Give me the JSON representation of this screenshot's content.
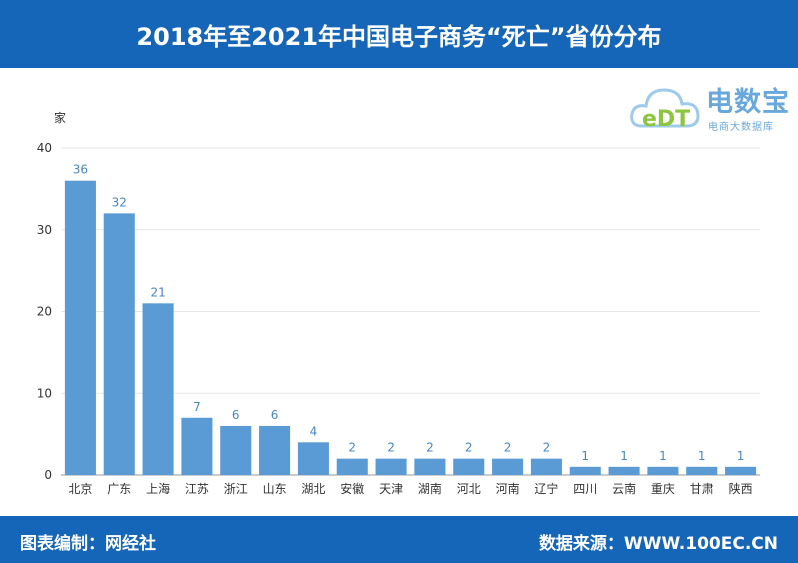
{
  "header": {
    "title": "2018年至2021年中国电子商务“死亡”省份分布"
  },
  "footer": {
    "editor": "图表编制：网经社",
    "source": "数据来源：WWW.100EC.CN"
  },
  "logo": {
    "name": "电数宝",
    "sub": "电商大数据库",
    "mark": "eDT"
  },
  "colors": {
    "bar": "#5b9bd5",
    "label": "#4a86c5",
    "header": "#1565b8"
  },
  "chart_data": {
    "type": "bar",
    "categories": [
      "北京",
      "广东",
      "上海",
      "江苏",
      "浙江",
      "山东",
      "湖北",
      "安徽",
      "天津",
      "湖南",
      "河北",
      "河南",
      "辽宁",
      "四川",
      "云南",
      "重庆",
      "甘肃",
      "陕西"
    ],
    "values": [
      36,
      32,
      21,
      7,
      6,
      6,
      4,
      2,
      2,
      2,
      2,
      2,
      2,
      1,
      1,
      1,
      1,
      1
    ],
    "ylabel": "家",
    "ylim": [
      0,
      40
    ],
    "yticks": [
      0,
      10,
      20,
      30,
      40
    ],
    "grid": true
  }
}
